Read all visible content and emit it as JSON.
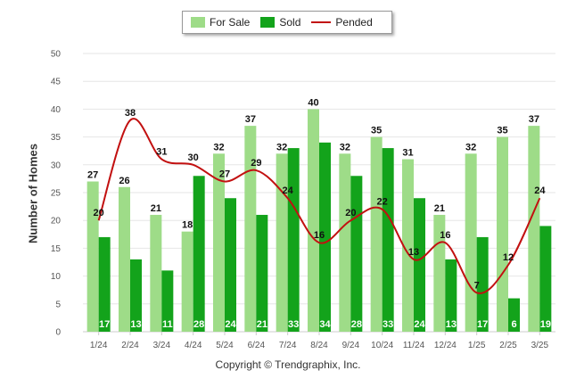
{
  "chart_data": {
    "type": "bar",
    "categories": [
      "1/24",
      "2/24",
      "3/24",
      "4/24",
      "5/24",
      "6/24",
      "7/24",
      "8/24",
      "9/24",
      "10/24",
      "11/24",
      "12/24",
      "1/25",
      "2/25",
      "3/25"
    ],
    "series": [
      {
        "name": "For Sale",
        "type": "bar",
        "color": "#9edc88",
        "values": [
          27,
          26,
          21,
          18,
          32,
          37,
          32,
          40,
          32,
          35,
          31,
          21,
          32,
          35,
          37
        ]
      },
      {
        "name": "Sold",
        "type": "bar",
        "color": "#13a31b",
        "values": [
          17,
          13,
          11,
          28,
          24,
          21,
          33,
          34,
          28,
          33,
          24,
          13,
          17,
          6,
          19
        ]
      },
      {
        "name": "Pended",
        "type": "line",
        "color": "#c21010",
        "values": [
          20,
          38,
          31,
          30,
          27,
          29,
          24,
          16,
          20,
          22,
          13,
          16,
          7,
          12,
          24
        ]
      }
    ],
    "ylabel": "Number of Homes",
    "xlabel": "",
    "ylim": [
      0,
      50
    ],
    "yticks": [
      0,
      5,
      10,
      15,
      20,
      25,
      30,
      35,
      40,
      45,
      50
    ],
    "grid": true,
    "legend": "top-center"
  },
  "legend": {
    "for_sale": "For Sale",
    "sold": "Sold",
    "pended": "Pended"
  },
  "copyright": "Copyright © Trendgraphix, Inc."
}
